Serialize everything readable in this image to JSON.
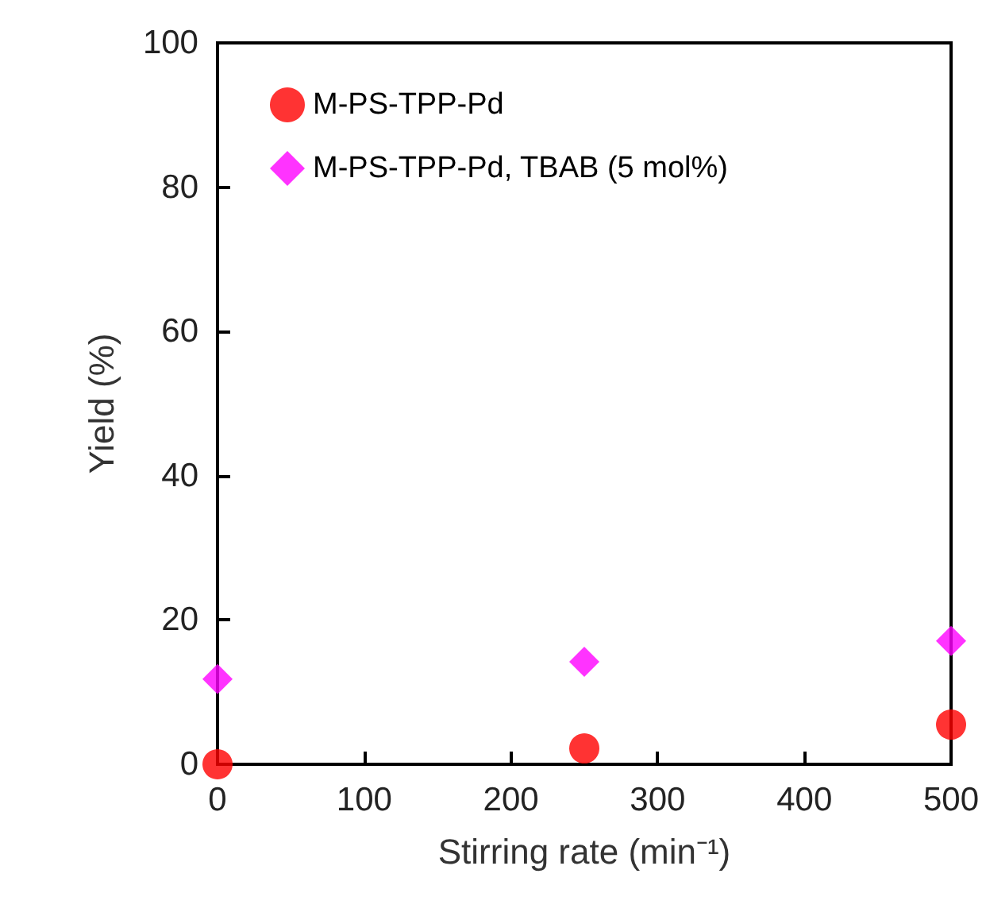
{
  "chart_data": {
    "type": "scatter",
    "xlabel": "Stirring rate (min⁻¹)",
    "ylabel": "Yield (%)",
    "x": [
      0,
      250,
      500
    ],
    "series": [
      {
        "name": "M-PS-TPP-Pd",
        "color": "#ff0000",
        "marker": "circle",
        "values": [
          0,
          2.2,
          5.5
        ]
      },
      {
        "name": "M-PS-TPP-Pd, TBAB (5 mol%)",
        "color": "#ff00ff",
        "marker": "diamond",
        "values": [
          11.8,
          14.2,
          17.1
        ]
      }
    ],
    "xlim": [
      0,
      500
    ],
    "xticks": [
      0,
      100,
      200,
      300,
      400,
      500
    ],
    "ylim": [
      0,
      100
    ],
    "yticks": [
      0,
      20,
      40,
      60,
      80,
      100
    ],
    "grid": false,
    "legend": "top left"
  }
}
